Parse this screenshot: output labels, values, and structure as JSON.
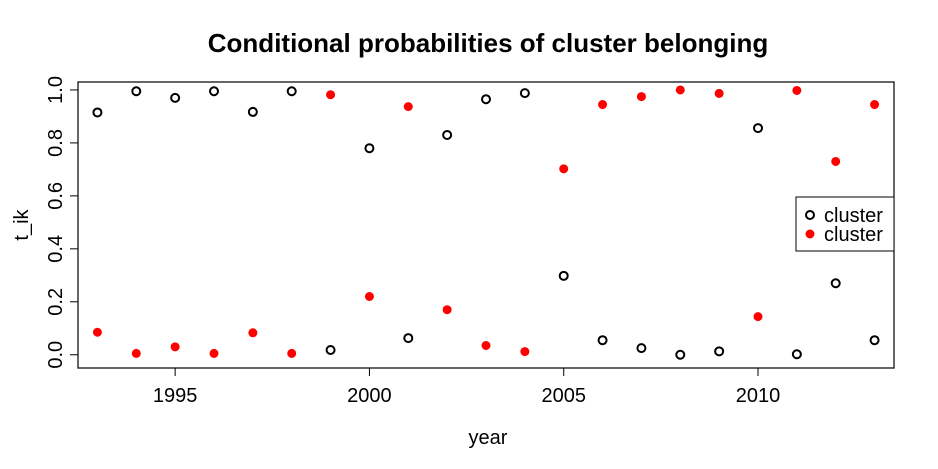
{
  "chart_data": {
    "type": "scatter",
    "title": "Conditional probabilities of cluster belonging",
    "xlabel": "year",
    "ylabel": "t_ik",
    "xlim": [
      1992.5,
      2013.5
    ],
    "ylim": [
      -0.05,
      1.03
    ],
    "xticks": [
      "1995",
      "2000",
      "2005",
      "2010"
    ],
    "yticks": [
      "0.0",
      "0.2",
      "0.4",
      "0.6",
      "0.8",
      "1.0"
    ],
    "grid": false,
    "legend_position": "right",
    "x": [
      1993,
      1994,
      1995,
      1996,
      1997,
      1998,
      1999,
      2000,
      2001,
      2002,
      2003,
      2004,
      2005,
      2006,
      2007,
      2008,
      2009,
      2010,
      2011,
      2012,
      2013
    ],
    "series": [
      {
        "name": "cluster",
        "marker": "open-circle",
        "color": "#000000",
        "values": [
          0.915,
          0.995,
          0.97,
          0.995,
          0.917,
          0.995,
          0.018,
          0.78,
          0.063,
          0.83,
          0.965,
          0.988,
          0.298,
          0.055,
          0.025,
          0.0,
          0.013,
          0.856,
          0.002,
          0.27,
          0.055
        ]
      },
      {
        "name": "cluster",
        "marker": "filled-circle",
        "color": "#ff0000",
        "values": [
          0.085,
          0.005,
          0.03,
          0.005,
          0.083,
          0.005,
          0.982,
          0.22,
          0.937,
          0.17,
          0.035,
          0.012,
          0.702,
          0.945,
          0.975,
          1.0,
          0.987,
          0.144,
          0.998,
          0.73,
          0.945
        ]
      }
    ]
  }
}
